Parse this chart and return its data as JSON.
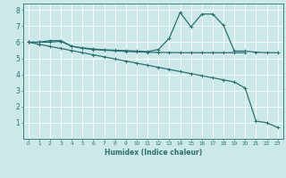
{
  "xlabel": "Humidex (Indice chaleur)",
  "bg_color": "#cce8e8",
  "line_color": "#2a7070",
  "grid_color": "#b8d8d8",
  "xlim": [
    -0.5,
    23.5
  ],
  "ylim": [
    0,
    8.4
  ],
  "xticks": [
    0,
    1,
    2,
    3,
    4,
    5,
    6,
    7,
    8,
    9,
    10,
    11,
    12,
    13,
    14,
    15,
    16,
    17,
    18,
    19,
    20,
    21,
    22,
    23
  ],
  "yticks": [
    1,
    2,
    3,
    4,
    5,
    6,
    7,
    8
  ],
  "line1_x": [
    0,
    1,
    2,
    3,
    4,
    5,
    6,
    7,
    8,
    9,
    10,
    11,
    12,
    13,
    14,
    15,
    16,
    17,
    18,
    19,
    20,
    21,
    22,
    23
  ],
  "line1_y": [
    6.0,
    6.0,
    6.1,
    6.1,
    5.75,
    5.65,
    5.58,
    5.53,
    5.5,
    5.48,
    5.45,
    5.42,
    5.55,
    6.25,
    7.85,
    6.95,
    7.75,
    7.75,
    7.05,
    5.45,
    5.45,
    5.38,
    5.35,
    5.35
  ],
  "line2_x": [
    0,
    1,
    2,
    3,
    4,
    5,
    6,
    7,
    8,
    9,
    10,
    11,
    12,
    13,
    14,
    15,
    16,
    17,
    18,
    19,
    20
  ],
  "line2_y": [
    6.0,
    6.0,
    6.0,
    6.05,
    5.75,
    5.62,
    5.55,
    5.5,
    5.47,
    5.43,
    5.4,
    5.38,
    5.37,
    5.36,
    5.35,
    5.35,
    5.35,
    5.35,
    5.35,
    5.35,
    5.35
  ],
  "line3_x": [
    0,
    1,
    2,
    3,
    4,
    5,
    6,
    7,
    8,
    9,
    10,
    11,
    12,
    13,
    14,
    15,
    16,
    17,
    18,
    19,
    20,
    21,
    22,
    23
  ],
  "line3_y": [
    6.0,
    5.87,
    5.74,
    5.61,
    5.48,
    5.35,
    5.22,
    5.09,
    4.96,
    4.83,
    4.7,
    4.57,
    4.44,
    4.31,
    4.18,
    4.05,
    3.92,
    3.79,
    3.66,
    3.53,
    3.15,
    1.1,
    1.0,
    0.7
  ]
}
